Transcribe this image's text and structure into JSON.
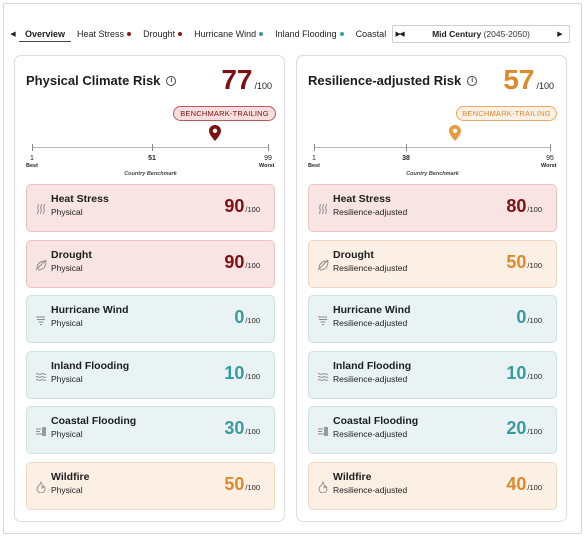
{
  "nav": {
    "prev_icon": "chevron-left-icon",
    "next_icon": "chevron-right-icon",
    "tabs": [
      {
        "label": "Overview",
        "active": true,
        "dot": null
      },
      {
        "label": "Heat Stress",
        "active": false,
        "dot": "#8b1a1a"
      },
      {
        "label": "Drought",
        "active": false,
        "dot": "#8b1a1a"
      },
      {
        "label": "Hurricane Wind",
        "active": false,
        "dot": "#3a9ba3"
      },
      {
        "label": "Inland Flooding",
        "active": false,
        "dot": "#3a9ba3"
      },
      {
        "label": "Coastal",
        "active": false,
        "dot": null
      }
    ]
  },
  "period": {
    "title": "Mid Century",
    "range": "(2045-2050)"
  },
  "colors": {
    "dark_red": "#7d1111",
    "orange": "#dd8a2e",
    "teal": "#3b9aa0"
  },
  "panels": {
    "physical": {
      "title": "Physical Climate Risk",
      "score": "77",
      "score_suffix": "/100",
      "badge": "BENCHMARK-TRAILING",
      "benchmark": {
        "min_label": "1",
        "min_caption": "Best",
        "mid_label": "51",
        "max_label": "99",
        "max_caption": "Worst",
        "caption": "Country Benchmark",
        "min": 1,
        "mid": 51,
        "max": 99,
        "marker": 77
      },
      "cards": [
        {
          "name": "Heat Stress",
          "sub": "Physical",
          "value": "90",
          "suffix": "/100",
          "icon": "heat-waves-icon",
          "tone": "red"
        },
        {
          "name": "Drought",
          "sub": "Physical",
          "value": "90",
          "suffix": "/100",
          "icon": "leaf-slash-icon",
          "tone": "red"
        },
        {
          "name": "Hurricane Wind",
          "sub": "Physical",
          "value": "0",
          "suffix": "/100",
          "icon": "wind-icon",
          "tone": "teal"
        },
        {
          "name": "Inland Flooding",
          "sub": "Physical",
          "value": "10",
          "suffix": "/100",
          "icon": "flood-waves-icon",
          "tone": "teal"
        },
        {
          "name": "Coastal Flooding",
          "sub": "Physical",
          "value": "30",
          "suffix": "/100",
          "icon": "coastal-icon",
          "tone": "teal"
        },
        {
          "name": "Wildfire",
          "sub": "Physical",
          "value": "50",
          "suffix": "/100",
          "icon": "flame-icon",
          "tone": "orange"
        }
      ]
    },
    "resilience": {
      "title": "Resilience-adjusted Risk",
      "score": "57",
      "score_suffix": "/100",
      "badge": "BENCHMARK-TRAILING",
      "benchmark": {
        "min_label": "1",
        "min_caption": "Best",
        "mid_label": "38",
        "max_label": "95",
        "max_caption": "Worst",
        "caption": "Country Benchmark",
        "min": 1,
        "mid": 38,
        "max": 95,
        "marker": 57
      },
      "cards": [
        {
          "name": "Heat Stress",
          "sub": "Resilience-adjusted",
          "value": "80",
          "suffix": "/100",
          "icon": "heat-waves-icon",
          "tone": "red"
        },
        {
          "name": "Drought",
          "sub": "Resilience-adjusted",
          "value": "50",
          "suffix": "/100",
          "icon": "leaf-slash-icon",
          "tone": "orange"
        },
        {
          "name": "Hurricane Wind",
          "sub": "Resilience-adjusted",
          "value": "0",
          "suffix": "/100",
          "icon": "wind-icon",
          "tone": "teal"
        },
        {
          "name": "Inland Flooding",
          "sub": "Resilience-adjusted",
          "value": "10",
          "suffix": "/100",
          "icon": "flood-waves-icon",
          "tone": "teal"
        },
        {
          "name": "Coastal Flooding",
          "sub": "Resilience-adjusted",
          "value": "20",
          "suffix": "/100",
          "icon": "coastal-icon",
          "tone": "teal"
        },
        {
          "name": "Wildfire",
          "sub": "Resilience-adjusted",
          "value": "40",
          "suffix": "/100",
          "icon": "flame-icon",
          "tone": "orange"
        }
      ]
    }
  }
}
